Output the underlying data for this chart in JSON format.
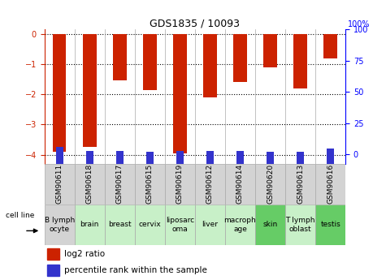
{
  "title": "GDS1835 / 10093",
  "samples": [
    "GSM90611",
    "GSM90618",
    "GSM90617",
    "GSM90615",
    "GSM90619",
    "GSM90612",
    "GSM90614",
    "GSM90620",
    "GSM90613",
    "GSM90616"
  ],
  "cell_lines": [
    "B lymph\nocyte",
    "brain",
    "breast",
    "cervix",
    "liposarc\noma",
    "liver",
    "macroph\nage",
    "skin",
    "T lymph\noblast",
    "testis"
  ],
  "cell_bg": [
    "#d3d3d3",
    "#c8f0c8",
    "#c8f0c8",
    "#c8f0c8",
    "#c8f0c8",
    "#c8f0c8",
    "#c8f0c8",
    "#66cc66",
    "#c8f0c8",
    "#66cc66"
  ],
  "log2_ratio": [
    -3.9,
    -3.75,
    -1.55,
    -1.85,
    -3.95,
    -2.1,
    -1.6,
    -1.12,
    -1.8,
    -0.82
  ],
  "percentile_rank": [
    6,
    3,
    3,
    2,
    3,
    3,
    3,
    2,
    2,
    5
  ],
  "bar_color_red": "#cc2200",
  "bar_color_blue": "#3333cc",
  "ylim_left": [
    -4.3,
    0.15
  ],
  "ylim_right": [
    -7.525,
    100
  ],
  "yticks_left": [
    0,
    -1,
    -2,
    -3,
    -4
  ],
  "yticks_right": [
    0,
    25,
    50,
    75,
    100
  ],
  "bar_width": 0.45,
  "blue_bar_width": 0.25,
  "title_fontsize": 9,
  "tick_fontsize": 7,
  "cell_fontsize": 6.5,
  "legend_fontsize": 7.5,
  "gsm_fontsize": 6.5,
  "sample_row_bg": "#d3d3d3",
  "cell_line_label": "cell line",
  "legend_red_label": "log2 ratio",
  "legend_blue_label": "percentile rank within the sample"
}
